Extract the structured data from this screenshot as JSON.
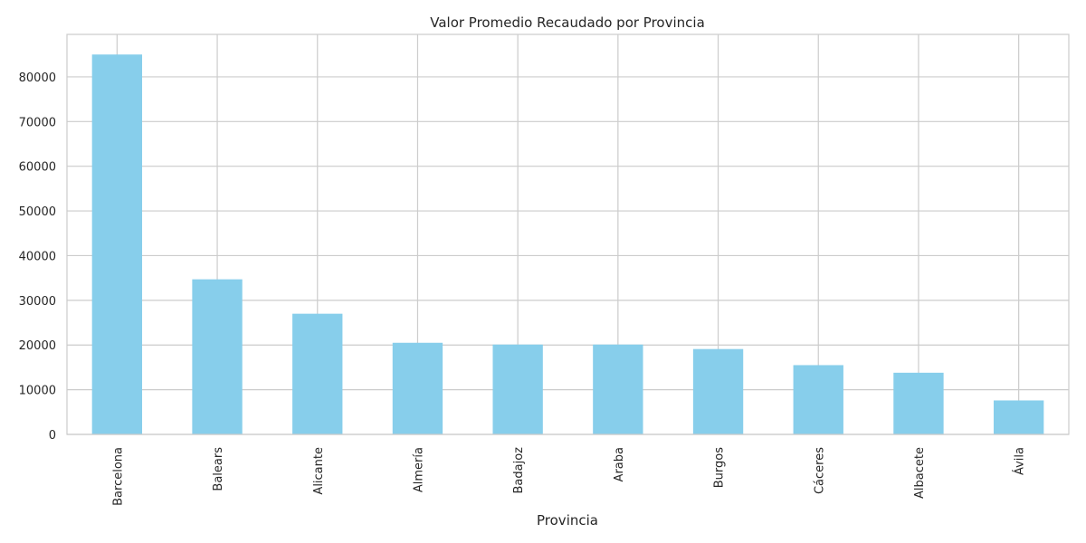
{
  "chart_data": {
    "type": "bar",
    "title": "Valor Promedio Recaudado por Provincia",
    "xlabel": "Provincia",
    "ylabel": "",
    "categories": [
      "Barcelona",
      "Balears",
      "Alicante",
      "Almería",
      "Badajoz",
      "Araba",
      "Burgos",
      "Cáceres",
      "Albacete",
      "Ávila"
    ],
    "values": [
      85000,
      34700,
      27000,
      20500,
      20100,
      20100,
      19100,
      15500,
      13800,
      7600
    ],
    "ylim": [
      0,
      89500
    ],
    "yticks": [
      0,
      10000,
      20000,
      30000,
      40000,
      50000,
      60000,
      70000,
      80000
    ],
    "grid": true,
    "colors": {
      "bar": "#87ceeb",
      "grid": "#cccccc",
      "axis": "#cccccc",
      "text": "#262626"
    }
  }
}
